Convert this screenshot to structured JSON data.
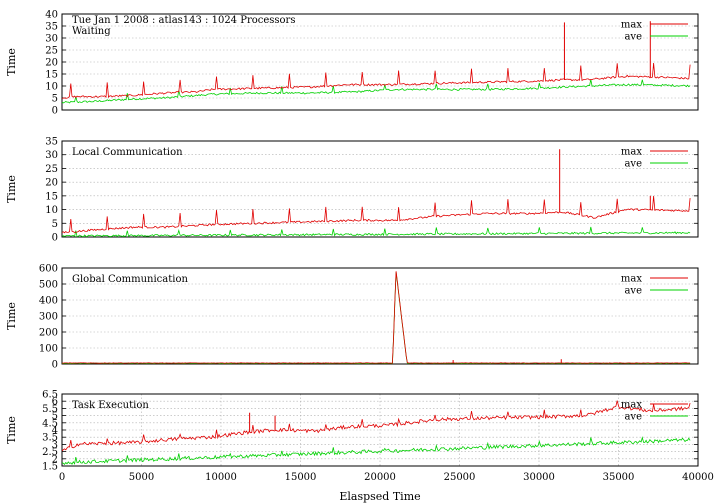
{
  "header": "Tue Jan 1 2008 : atlas143 : 1024 Processors",
  "x_axis_label": "Elaspsed Time",
  "colors": {
    "max": "#e00000",
    "ave": "#00d000",
    "grid": "#b0b0b0",
    "frame": "#000000"
  },
  "chart_data": [
    {
      "type": "line",
      "title": "Waiting",
      "ylabel": "Time",
      "xlim": [
        0,
        40000
      ],
      "ylim": [
        0,
        40
      ],
      "yticks": [
        0,
        5,
        10,
        15,
        20,
        25,
        30,
        35,
        40
      ],
      "xticks": [],
      "grid": true,
      "legend": "top-right",
      "series": [
        {
          "name": "max",
          "x": [
            0,
            1000,
            2500,
            4500,
            6500,
            8500,
            9500,
            12500,
            15500,
            18000,
            20500,
            23500,
            26500,
            30000,
            31500,
            33000,
            35500,
            38000,
            39500
          ],
          "y": [
            5,
            5.5,
            5.5,
            6,
            7,
            7.5,
            8.5,
            9,
            9.5,
            10.5,
            10.5,
            11,
            11.5,
            12,
            12.5,
            12.5,
            14,
            13.5,
            13
          ]
        },
        {
          "name": "ave",
          "x": [
            0,
            2000,
            4500,
            6500,
            9500,
            12500,
            15500,
            18500,
            21000,
            23500,
            27000,
            30000,
            31500,
            35500,
            39500
          ],
          "y": [
            3,
            3.5,
            4.5,
            5,
            6.5,
            7,
            7,
            7.5,
            8.5,
            8.5,
            8.5,
            9,
            9.5,
            10.5,
            10
          ]
        }
      ],
      "spikes": [
        {
          "x": 31600,
          "y": 36.5
        },
        {
          "x": 37000,
          "y": 37
        }
      ]
    },
    {
      "type": "line",
      "title": "Local Communication",
      "ylabel": "Time",
      "xlim": [
        0,
        40000
      ],
      "ylim": [
        0,
        35
      ],
      "yticks": [
        0,
        5,
        10,
        15,
        20,
        25,
        30,
        35
      ],
      "xticks": [],
      "grid": true,
      "legend": "top-right",
      "series": [
        {
          "name": "max",
          "x": [
            0,
            2000,
            4500,
            6500,
            9500,
            12500,
            15500,
            18500,
            21000,
            23500,
            26500,
            29500,
            31500,
            33500,
            35500,
            39500
          ],
          "y": [
            1.5,
            2.5,
            3.5,
            3.5,
            4.5,
            5,
            5.5,
            6,
            6,
            7.5,
            8.5,
            8.5,
            9,
            7,
            10,
            9.5
          ]
        },
        {
          "name": "ave",
          "x": [
            0,
            39500
          ],
          "y": [
            0.3,
            1.5
          ]
        }
      ],
      "spikes": [
        {
          "x": 31300,
          "y": 32
        },
        {
          "x": 37000,
          "y": 15
        }
      ]
    },
    {
      "type": "line",
      "title": "Global Communication",
      "ylabel": "Time",
      "xlim": [
        0,
        40000
      ],
      "ylim": [
        0,
        600
      ],
      "yticks": [
        0,
        100,
        200,
        300,
        400,
        500,
        600
      ],
      "xticks": [],
      "grid": true,
      "legend": "top-right",
      "series": [
        {
          "name": "max",
          "x": [
            0,
            20800,
            21000,
            21700,
            39500
          ],
          "y": [
            5,
            5,
            590,
            5,
            5
          ]
        },
        {
          "name": "ave",
          "x": [
            0,
            20800,
            21000,
            21700,
            39500
          ],
          "y": [
            3,
            3,
            585,
            3,
            3
          ]
        }
      ],
      "spikes": [
        {
          "x": 31400,
          "y": 30
        },
        {
          "x": 24600,
          "y": 25
        }
      ]
    },
    {
      "type": "line",
      "title": "Task Execution",
      "ylabel": "Time",
      "xlim": [
        0,
        40000
      ],
      "ylim": [
        1.5,
        6.5
      ],
      "yticks": [
        1.5,
        2,
        2.5,
        3,
        3.5,
        4,
        4.5,
        5,
        5.5,
        6,
        6.5
      ],
      "xticks": [
        0,
        5000,
        10000,
        15000,
        20000,
        25000,
        30000,
        35000,
        40000
      ],
      "grid": true,
      "legend": "top-right",
      "series": [
        {
          "name": "max",
          "x": [
            0,
            1000,
            4500,
            6500,
            9500,
            11500,
            13500,
            16000,
            18000,
            20500,
            23500,
            26500,
            31000,
            33000,
            35000,
            37000,
            39500
          ],
          "y": [
            2.5,
            3,
            3.1,
            3.3,
            3.5,
            3.8,
            4,
            3.9,
            4.2,
            4.3,
            4.7,
            4.8,
            4.9,
            5,
            5.6,
            5.3,
            5.5
          ]
        },
        {
          "name": "ave",
          "x": [
            0,
            2500,
            5000,
            10000,
            15000,
            20000,
            25000,
            30000,
            35000,
            39500
          ],
          "y": [
            1.7,
            1.8,
            1.9,
            2.1,
            2.3,
            2.5,
            2.7,
            2.9,
            3.1,
            3.3
          ]
        }
      ],
      "spikes": [
        {
          "x": 11800,
          "y": 5.2
        },
        {
          "x": 13400,
          "y": 5.0
        }
      ]
    }
  ]
}
